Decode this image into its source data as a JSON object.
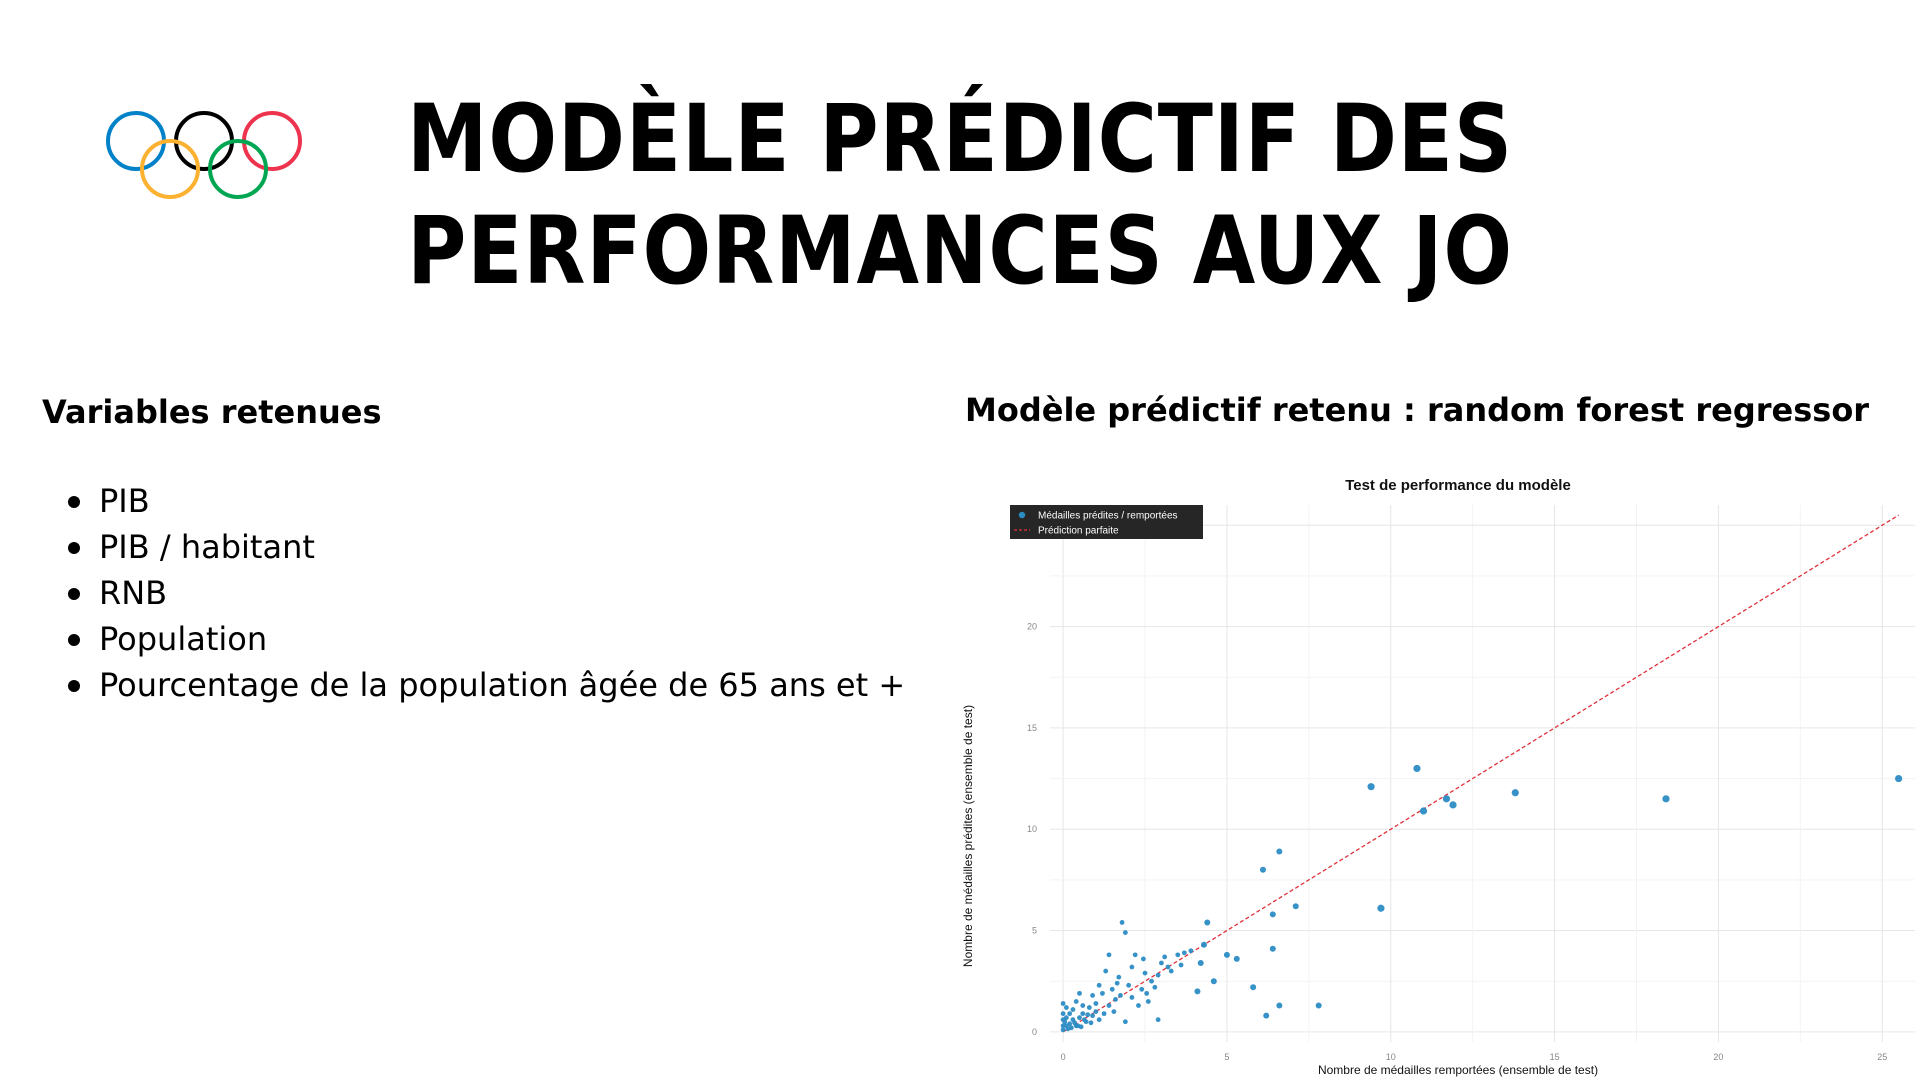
{
  "title": {
    "line1": "MODÈLE PRÉDICTIF DES",
    "line2": "PERFORMANCES AUX JO"
  },
  "logo": {
    "icon": "olympic-rings-icon",
    "ring_colors": [
      "#0081C8",
      "#FCB131",
      "#000000",
      "#00A651",
      "#EE334E"
    ]
  },
  "left": {
    "heading": "Variables retenues",
    "variables": [
      "PIB",
      "PIB / habitant",
      "RNB",
      "Population",
      "Pourcentage de la population âgée de 65 ans et +"
    ]
  },
  "right": {
    "heading": "Modèle prédictif retenu : random forest regressor"
  },
  "chart_data": {
    "type": "scatter",
    "title": "Test de performance du modèle",
    "xlabel": "Nombre de médailles remportées (ensemble de test)",
    "ylabel": "Nombre de médailles prédites (ensemble de test)",
    "xlim": [
      -0.4,
      26
    ],
    "ylim": [
      -0.5,
      26
    ],
    "xticks": [
      "0",
      "5",
      "10",
      "15",
      "20",
      "25"
    ],
    "yticks": [
      "0",
      "5",
      "10",
      "15",
      "20",
      "25"
    ],
    "grid": true,
    "legend": {
      "position": "top-left",
      "entries": [
        "Médailles prédites / remportées",
        "Prédiction parfaite"
      ]
    },
    "colors": {
      "points": "#2b8cc4",
      "reference_line": "#e0303a",
      "legend_bg": "#262626"
    },
    "series": [
      {
        "name": "Médailles prédites / remportées",
        "points": [
          [
            25.5,
            12.5
          ],
          [
            18.4,
            11.5
          ],
          [
            13.8,
            11.8
          ],
          [
            11.9,
            11.2
          ],
          [
            11.7,
            11.5
          ],
          [
            11.0,
            10.9
          ],
          [
            10.8,
            13.0
          ],
          [
            9.4,
            12.1
          ],
          [
            9.7,
            6.1
          ],
          [
            7.8,
            1.3
          ],
          [
            7.1,
            6.2
          ],
          [
            6.6,
            8.9
          ],
          [
            6.1,
            8.0
          ],
          [
            6.4,
            5.8
          ],
          [
            6.4,
            4.1
          ],
          [
            6.6,
            1.3
          ],
          [
            6.2,
            0.8
          ],
          [
            5.8,
            2.2
          ],
          [
            5.3,
            3.6
          ],
          [
            5.0,
            3.8
          ],
          [
            4.4,
            5.4
          ],
          [
            4.3,
            4.3
          ],
          [
            4.2,
            3.4
          ],
          [
            3.9,
            4.0
          ],
          [
            4.6,
            2.5
          ],
          [
            4.1,
            2.0
          ],
          [
            3.5,
            3.8
          ],
          [
            3.6,
            3.3
          ],
          [
            3.3,
            3.0
          ],
          [
            3.1,
            3.7
          ],
          [
            3.2,
            3.2
          ],
          [
            2.9,
            2.8
          ],
          [
            2.8,
            2.2
          ],
          [
            2.6,
            1.5
          ],
          [
            2.9,
            0.6
          ],
          [
            3.0,
            3.4
          ],
          [
            2.7,
            2.5
          ],
          [
            2.4,
            2.1
          ],
          [
            2.2,
            3.8
          ],
          [
            2.1,
            1.7
          ],
          [
            2.3,
            1.3
          ],
          [
            2.0,
            2.3
          ],
          [
            1.8,
            5.4
          ],
          [
            1.9,
            4.9
          ],
          [
            2.1,
            3.2
          ],
          [
            1.7,
            2.7
          ],
          [
            1.5,
            2.1
          ],
          [
            1.6,
            1.6
          ],
          [
            1.9,
            0.5
          ],
          [
            1.4,
            3.8
          ],
          [
            1.3,
            3.0
          ],
          [
            1.1,
            2.3
          ],
          [
            1.2,
            1.9
          ],
          [
            1.4,
            1.3
          ],
          [
            1.0,
            1.0
          ],
          [
            1.1,
            0.6
          ],
          [
            0.9,
            1.8
          ],
          [
            1.0,
            1.4
          ],
          [
            0.8,
            1.2
          ],
          [
            0.9,
            0.8
          ],
          [
            0.7,
            0.5
          ],
          [
            0.6,
            1.3
          ],
          [
            0.6,
            0.9
          ],
          [
            0.5,
            1.9
          ],
          [
            0.5,
            0.7
          ],
          [
            0.4,
            1.5
          ],
          [
            0.4,
            0.3
          ],
          [
            0.3,
            1.1
          ],
          [
            0.3,
            0.6
          ],
          [
            0.2,
            0.9
          ],
          [
            0.2,
            0.4
          ],
          [
            0.1,
            1.2
          ],
          [
            0.1,
            0.7
          ],
          [
            0.1,
            0.3
          ],
          [
            0.05,
            0.5
          ],
          [
            0.0,
            0.9
          ],
          [
            0.0,
            0.6
          ],
          [
            0.0,
            0.3
          ],
          [
            0.0,
            0.1
          ],
          [
            0.0,
            1.4
          ],
          [
            0.15,
            0.15
          ],
          [
            0.25,
            0.2
          ],
          [
            0.35,
            0.45
          ],
          [
            0.45,
            0.3
          ],
          [
            0.55,
            0.25
          ],
          [
            0.65,
            0.6
          ],
          [
            0.75,
            0.85
          ],
          [
            0.85,
            0.45
          ],
          [
            1.25,
            0.9
          ],
          [
            1.55,
            1.0
          ],
          [
            1.65,
            2.4
          ],
          [
            1.75,
            1.8
          ],
          [
            2.5,
            2.9
          ],
          [
            2.55,
            1.9
          ],
          [
            2.45,
            3.6
          ],
          [
            3.7,
            3.9
          ]
        ]
      },
      {
        "name": "Prédiction parfaite",
        "line": [
          [
            0,
            0
          ],
          [
            25.5,
            25.5
          ]
        ]
      }
    ]
  }
}
